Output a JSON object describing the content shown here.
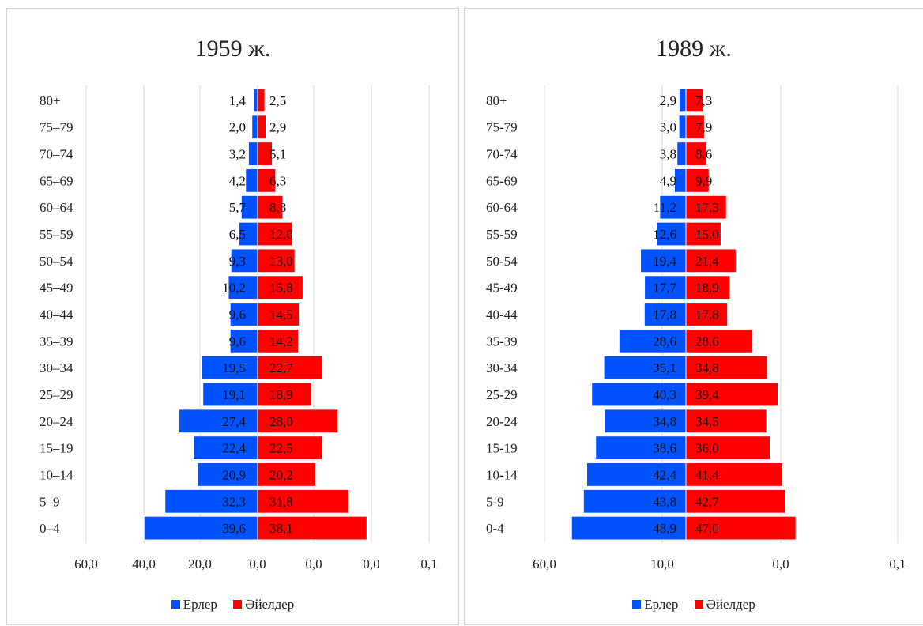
{
  "chart_data": [
    {
      "type": "bar",
      "orientation": "horizontal",
      "title": "1959 ж.",
      "categories": [
        "80+",
        "75–79",
        "70–74",
        "65–69",
        "60–64",
        "55–59",
        "50–54",
        "45–49",
        "40–44",
        "35–39",
        "30–34",
        "25–29",
        "20–24",
        "15–19",
        "10–14",
        "5–9",
        "0–4"
      ],
      "series": [
        {
          "name": "Ерлер",
          "color": "#0052ff",
          "values": [
            1.4,
            2.0,
            3.2,
            4.2,
            5.7,
            6.5,
            9.3,
            10.2,
            9.6,
            9.6,
            19.5,
            19.1,
            27.4,
            22.4,
            20.9,
            32.3,
            39.6
          ],
          "labels": [
            "1,4",
            "2,0",
            "3,2",
            "4,2",
            "5,7",
            "6,5",
            "9,3",
            "10,2",
            "9,6",
            "9,6",
            "19,5",
            "19,1",
            "27,4",
            "22,4",
            "20,9",
            "32,3",
            "39,6"
          ]
        },
        {
          "name": "Әйелдер",
          "color": "#ff0000",
          "values": [
            2.5,
            2.9,
            5.1,
            6.3,
            8.8,
            12.0,
            13.0,
            15.8,
            14.5,
            14.2,
            22.7,
            18.9,
            28.0,
            22.5,
            20.2,
            31.8,
            38.1
          ],
          "labels": [
            "2,5",
            "2,9",
            "5,1",
            "6,3",
            "8,8",
            "12,0",
            "13,0",
            "15,8",
            "14,5",
            "14,2",
            "22,7",
            "18,9",
            "28,0",
            "22,5",
            "20,2",
            "31,8",
            "38,1"
          ]
        }
      ],
      "xticks": [
        "60,0",
        "40,0",
        "20,0",
        "0,0",
        "0,0",
        "0,0",
        "0,1"
      ],
      "grid": true,
      "legend": "bottom"
    },
    {
      "type": "bar",
      "orientation": "horizontal",
      "title": "1989 ж.",
      "categories": [
        "80+",
        "75-79",
        "70-74",
        "65-69",
        "60-64",
        "55-59",
        "50-54",
        "45-49",
        "40-44",
        "35-39",
        "30-34",
        "25-29",
        "20-24",
        "15-19",
        "10-14",
        "5-9",
        "0-4"
      ],
      "series": [
        {
          "name": "Ерлер",
          "color": "#0052ff",
          "values": [
            2.9,
            3.0,
            3.8,
            4.9,
            11.2,
            12.6,
            19.4,
            17.7,
            17.8,
            28.6,
            35.1,
            40.3,
            34.8,
            38.6,
            42.4,
            43.8,
            48.9
          ],
          "labels": [
            "2,9",
            "3,0",
            "3,8",
            "4,9",
            "11,2",
            "12,6",
            "19,4",
            "17,7",
            "17,8",
            "28,6",
            "35,1",
            "40,3",
            "34,8",
            "38,6",
            "42,4",
            "43,8",
            "48,9"
          ]
        },
        {
          "name": "Әйелдер",
          "color": "#ff0000",
          "values": [
            7.3,
            7.9,
            8.6,
            9.9,
            17.3,
            15.0,
            21.4,
            18.9,
            17.8,
            28.6,
            34.8,
            39.4,
            34.5,
            36.0,
            41.4,
            42.7,
            47.0
          ],
          "labels": [
            "7,3",
            "7,9",
            "8,6",
            "9,9",
            "17,3",
            "15,0",
            "21,4",
            "18,9",
            "17,8",
            "28,6",
            "34,8",
            "39,4",
            "34,5",
            "36,0",
            "41,4",
            "42,7",
            "47,0"
          ]
        }
      ],
      "xticks": [
        "60,0",
        "10,0",
        "0,0",
        "0,1"
      ],
      "grid": true,
      "legend": "bottom"
    }
  ]
}
